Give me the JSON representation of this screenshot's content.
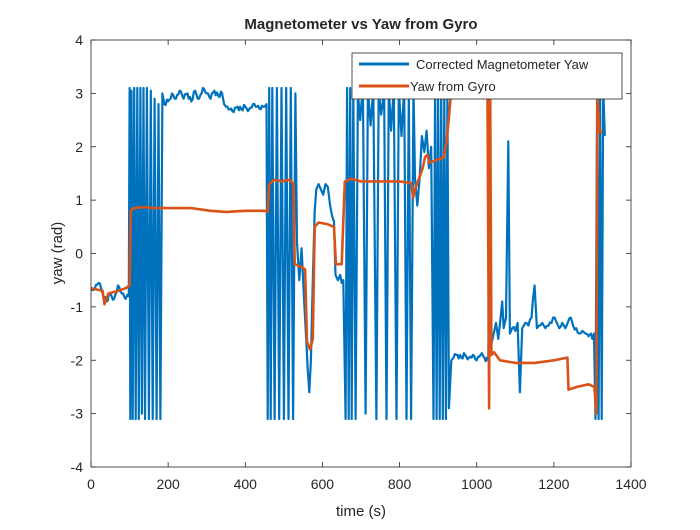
{
  "chart_data": {
    "type": "line",
    "title": "Magnetometer vs Yaw from Gyro",
    "xlabel": "time (s)",
    "ylabel": "yaw (rad)",
    "xlim": [
      0,
      1400
    ],
    "ylim": [
      -4,
      4
    ],
    "xticks": [
      0,
      200,
      400,
      600,
      800,
      1000,
      1200,
      1400
    ],
    "yticks": [
      -4,
      -3,
      -2,
      -1,
      0,
      1,
      2,
      3,
      4
    ],
    "grid": false,
    "legend_position": "top-right",
    "series": [
      {
        "name": "Corrected Magnetometer Yaw",
        "color": "#0072BD",
        "style": "noisy",
        "points": [
          [
            0,
            -0.7
          ],
          [
            10,
            -0.65
          ],
          [
            20,
            -0.55
          ],
          [
            30,
            -0.75
          ],
          [
            40,
            -0.9
          ],
          [
            50,
            -0.75
          ],
          [
            60,
            -0.85
          ],
          [
            70,
            -0.6
          ],
          [
            80,
            -0.75
          ],
          [
            90,
            -0.85
          ],
          [
            98,
            -0.8
          ],
          [
            100,
            3.1
          ],
          [
            102,
            -3.1
          ],
          [
            105,
            3.05
          ],
          [
            108,
            -3.1
          ],
          [
            112,
            3.1
          ],
          [
            116,
            -3.1
          ],
          [
            120,
            3.1
          ],
          [
            124,
            -3.1
          ],
          [
            128,
            3.1
          ],
          [
            132,
            -3.0
          ],
          [
            136,
            3.1
          ],
          [
            140,
            -3.1
          ],
          [
            145,
            3.1
          ],
          [
            150,
            -3.1
          ],
          [
            155,
            3.05
          ],
          [
            160,
            -3.1
          ],
          [
            165,
            2.9
          ],
          [
            170,
            -3.1
          ],
          [
            175,
            2.8
          ],
          [
            180,
            -3.1
          ],
          [
            185,
            3.0
          ],
          [
            190,
            2.8
          ],
          [
            200,
            2.85
          ],
          [
            210,
            3.0
          ],
          [
            220,
            2.9
          ],
          [
            230,
            3.05
          ],
          [
            240,
            2.9
          ],
          [
            250,
            3.0
          ],
          [
            260,
            2.85
          ],
          [
            270,
            3.05
          ],
          [
            280,
            2.9
          ],
          [
            290,
            3.1
          ],
          [
            300,
            3.0
          ],
          [
            310,
            2.9
          ],
          [
            320,
            3.05
          ],
          [
            330,
            2.95
          ],
          [
            340,
            3.0
          ],
          [
            345,
            2.8
          ],
          [
            350,
            2.75
          ],
          [
            360,
            2.7
          ],
          [
            370,
            2.65
          ],
          [
            380,
            2.75
          ],
          [
            390,
            2.7
          ],
          [
            400,
            2.75
          ],
          [
            410,
            2.7
          ],
          [
            420,
            2.8
          ],
          [
            430,
            2.75
          ],
          [
            440,
            2.7
          ],
          [
            450,
            2.75
          ],
          [
            455,
            2.8
          ],
          [
            458,
            -3.1
          ],
          [
            462,
            3.1
          ],
          [
            466,
            -3.1
          ],
          [
            470,
            3.1
          ],
          [
            476,
            -3.1
          ],
          [
            482,
            3.1
          ],
          [
            488,
            -3.1
          ],
          [
            494,
            3.1
          ],
          [
            500,
            -3.1
          ],
          [
            506,
            3.1
          ],
          [
            512,
            -3.1
          ],
          [
            518,
            3.1
          ],
          [
            524,
            -3.1
          ],
          [
            530,
            3.0
          ],
          [
            534,
            0.2
          ],
          [
            540,
            -0.5
          ],
          [
            546,
            0.1
          ],
          [
            552,
            -0.8
          ],
          [
            558,
            -1.6
          ],
          [
            562,
            -2.2
          ],
          [
            566,
            -2.6
          ],
          [
            570,
            -2.0
          ],
          [
            575,
            -0.5
          ],
          [
            580,
            0.8
          ],
          [
            584,
            1.2
          ],
          [
            590,
            1.3
          ],
          [
            596,
            1.2
          ],
          [
            602,
            1.1
          ],
          [
            608,
            1.3
          ],
          [
            614,
            1.25
          ],
          [
            620,
            0.9
          ],
          [
            625,
            0.7
          ],
          [
            630,
            0.6
          ],
          [
            634,
            -0.4
          ],
          [
            640,
            -0.5
          ],
          [
            646,
            -0.4
          ],
          [
            650,
            -0.55
          ],
          [
            654,
            -0.5
          ],
          [
            660,
            -3.1
          ],
          [
            664,
            3.1
          ],
          [
            668,
            -3.1
          ],
          [
            672,
            3.1
          ],
          [
            676,
            -3.1
          ],
          [
            680,
            3.1
          ],
          [
            686,
            -3.1
          ],
          [
            692,
            3.0
          ],
          [
            698,
            2.5
          ],
          [
            705,
            3.1
          ],
          [
            712,
            -3.0
          ],
          [
            718,
            3.1
          ],
          [
            725,
            2.4
          ],
          [
            732,
            3.1
          ],
          [
            740,
            -3.1
          ],
          [
            746,
            3.1
          ],
          [
            752,
            2.6
          ],
          [
            760,
            3.1
          ],
          [
            766,
            -3.1
          ],
          [
            772,
            3.1
          ],
          [
            778,
            2.3
          ],
          [
            785,
            3.1
          ],
          [
            792,
            -3.1
          ],
          [
            798,
            3.1
          ],
          [
            805,
            2.2
          ],
          [
            812,
            3.1
          ],
          [
            818,
            -3.1
          ],
          [
            824,
            3.0
          ],
          [
            830,
            -3.1
          ],
          [
            836,
            3.1
          ],
          [
            840,
            1.4
          ],
          [
            846,
            0.9
          ],
          [
            852,
            1.4
          ],
          [
            858,
            2.2
          ],
          [
            864,
            1.9
          ],
          [
            870,
            2.3
          ],
          [
            876,
            1.6
          ],
          [
            882,
            2.0
          ],
          [
            888,
            -3.1
          ],
          [
            892,
            3.1
          ],
          [
            896,
            -3.1
          ],
          [
            900,
            3.0
          ],
          [
            904,
            -3.1
          ],
          [
            908,
            3.1
          ],
          [
            912,
            -3.1
          ],
          [
            916,
            3.1
          ],
          [
            920,
            -3.1
          ],
          [
            924,
            3.0
          ],
          [
            928,
            -2.9
          ],
          [
            934,
            -2.0
          ],
          [
            940,
            -1.95
          ],
          [
            950,
            -1.9
          ],
          [
            960,
            -1.95
          ],
          [
            970,
            -1.9
          ],
          [
            980,
            -1.95
          ],
          [
            990,
            -1.9
          ],
          [
            1000,
            -2.0
          ],
          [
            1010,
            -1.9
          ],
          [
            1020,
            -1.95
          ],
          [
            1030,
            -2.0
          ],
          [
            1034,
            3.1
          ],
          [
            1038,
            -1.7
          ],
          [
            1044,
            -1.5
          ],
          [
            1050,
            -1.3
          ],
          [
            1056,
            -1.6
          ],
          [
            1062,
            -1.2
          ],
          [
            1066,
            -0.9
          ],
          [
            1070,
            -1.4
          ],
          [
            1076,
            -1.2
          ],
          [
            1082,
            2.1
          ],
          [
            1086,
            -1.5
          ],
          [
            1092,
            -1.4
          ],
          [
            1100,
            -1.45
          ],
          [
            1106,
            -1.3
          ],
          [
            1112,
            -2.6
          ],
          [
            1118,
            -1.4
          ],
          [
            1126,
            -1.3
          ],
          [
            1134,
            -1.35
          ],
          [
            1142,
            -1.2
          ],
          [
            1150,
            -0.6
          ],
          [
            1156,
            -1.4
          ],
          [
            1162,
            -1.35
          ],
          [
            1170,
            -1.3
          ],
          [
            1178,
            -1.4
          ],
          [
            1186,
            -1.35
          ],
          [
            1194,
            -1.3
          ],
          [
            1202,
            -1.2
          ],
          [
            1208,
            -1.3
          ],
          [
            1214,
            -1.4
          ],
          [
            1222,
            -1.3
          ],
          [
            1230,
            -1.4
          ],
          [
            1236,
            -1.3
          ],
          [
            1244,
            -1.2
          ],
          [
            1250,
            -1.35
          ],
          [
            1258,
            -1.4
          ],
          [
            1266,
            -1.5
          ],
          [
            1274,
            -1.45
          ],
          [
            1282,
            -1.5
          ],
          [
            1290,
            -1.55
          ],
          [
            1296,
            -1.5
          ],
          [
            1300,
            -1.6
          ],
          [
            1304,
            -1.5
          ],
          [
            1308,
            -3.1
          ],
          [
            1312,
            3.0
          ],
          [
            1316,
            -3.1
          ],
          [
            1320,
            3.0
          ],
          [
            1324,
            -3.1
          ],
          [
            1328,
            3.1
          ],
          [
            1332,
            2.2
          ]
        ]
      },
      {
        "name": "Yaw from Gyro",
        "color": "#D95319",
        "style": "step",
        "points": [
          [
            0,
            -0.65
          ],
          [
            30,
            -0.7
          ],
          [
            35,
            -0.95
          ],
          [
            45,
            -0.75
          ],
          [
            70,
            -0.7
          ],
          [
            90,
            -0.65
          ],
          [
            100,
            -0.6
          ],
          [
            103,
            0.8
          ],
          [
            110,
            0.85
          ],
          [
            140,
            0.87
          ],
          [
            160,
            0.85
          ],
          [
            200,
            0.85
          ],
          [
            260,
            0.85
          ],
          [
            310,
            0.8
          ],
          [
            350,
            0.78
          ],
          [
            400,
            0.8
          ],
          [
            450,
            0.8
          ],
          [
            458,
            0.78
          ],
          [
            462,
            1.3
          ],
          [
            475,
            1.38
          ],
          [
            495,
            1.35
          ],
          [
            515,
            1.38
          ],
          [
            525,
            1.3
          ],
          [
            528,
            -0.2
          ],
          [
            545,
            -0.25
          ],
          [
            555,
            -0.3
          ],
          [
            560,
            -1.65
          ],
          [
            568,
            -1.8
          ],
          [
            575,
            -1.6
          ],
          [
            580,
            0.5
          ],
          [
            590,
            0.58
          ],
          [
            612,
            0.55
          ],
          [
            630,
            0.5
          ],
          [
            635,
            -0.2
          ],
          [
            650,
            -0.2
          ],
          [
            658,
            1.35
          ],
          [
            675,
            1.4
          ],
          [
            700,
            1.35
          ],
          [
            740,
            1.35
          ],
          [
            800,
            1.35
          ],
          [
            830,
            1.32
          ],
          [
            835,
            1.05
          ],
          [
            840,
            1.2
          ],
          [
            850,
            1.4
          ],
          [
            860,
            1.6
          ],
          [
            866,
            1.8
          ],
          [
            872,
            1.85
          ],
          [
            878,
            1.7
          ],
          [
            895,
            1.75
          ],
          [
            915,
            1.8
          ],
          [
            922,
            2.1
          ],
          [
            928,
            2.55
          ],
          [
            932,
            2.9
          ],
          [
            950,
            3.0
          ],
          [
            980,
            3.0
          ],
          [
            1028,
            2.95
          ],
          [
            1032,
            -2.9
          ],
          [
            1035,
            3.0
          ],
          [
            1038,
            -1.9
          ],
          [
            1045,
            -1.85
          ],
          [
            1060,
            -2.0
          ],
          [
            1100,
            -2.05
          ],
          [
            1150,
            -2.05
          ],
          [
            1200,
            -2.0
          ],
          [
            1235,
            -1.95
          ],
          [
            1238,
            -2.55
          ],
          [
            1260,
            -2.5
          ],
          [
            1290,
            -2.45
          ],
          [
            1305,
            -2.5
          ],
          [
            1310,
            -3.0
          ],
          [
            1313,
            2.9
          ],
          [
            1318,
            2.3
          ],
          [
            1325,
            2.25
          ]
        ]
      }
    ]
  }
}
